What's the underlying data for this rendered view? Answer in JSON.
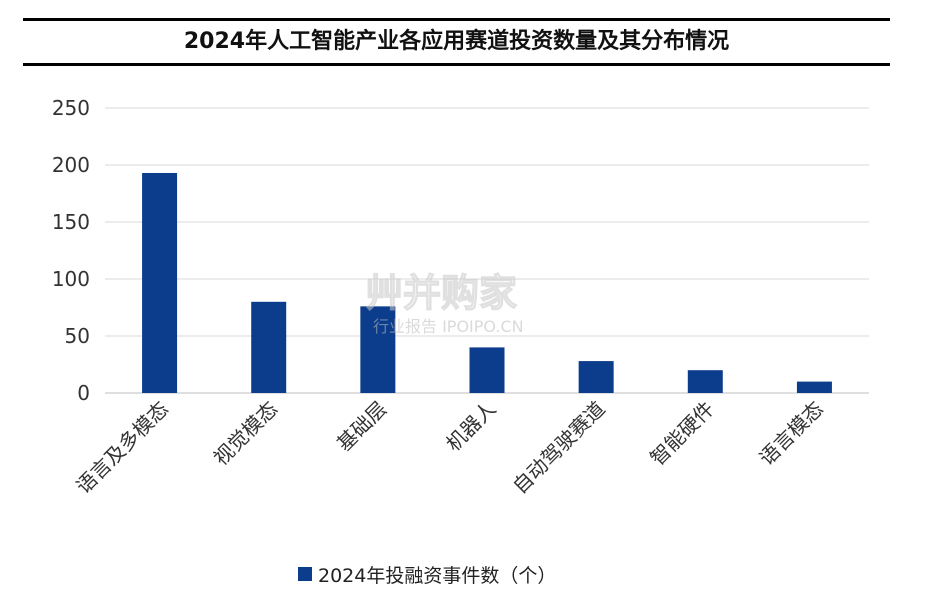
{
  "title": "2024年人工智能产业各应用赛道投资数量及其分布情况",
  "watermark": {
    "brand": "艸并购家",
    "sub": "行业报告 IPOIPO.CN"
  },
  "colors": {
    "bar": "#0c3d8c",
    "grid": "#d9d9d9",
    "text": "#333333"
  },
  "chart_data": {
    "type": "bar",
    "categories": [
      "语言及多模态",
      "视觉模态",
      "基础层",
      "机器人",
      "自动驾驶赛道",
      "智能硬件",
      "语言模态"
    ],
    "series": [
      {
        "name": "2024年投融资事件数（个）",
        "values": [
          193,
          80,
          76,
          40,
          28,
          20,
          10
        ]
      }
    ],
    "ylim": [
      0,
      250
    ],
    "yticks": [
      0,
      50,
      100,
      150,
      200,
      250
    ],
    "grid": true,
    "legend": "bottom-center"
  }
}
